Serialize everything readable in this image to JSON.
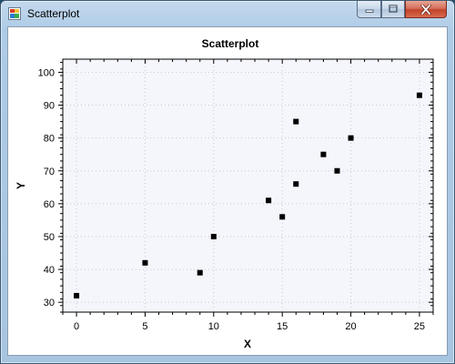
{
  "window": {
    "title": "Scatterplot",
    "controls": {
      "minimize": "minimize",
      "maximize": "maximize",
      "close": "close"
    }
  },
  "colors": {
    "plot_background": "#f5f6fc",
    "point": "#000000",
    "grid": "#c8c8d0",
    "close_button": "#c8432a"
  },
  "chart_data": {
    "type": "scatter",
    "title": "Scatterplot",
    "xlabel": "X",
    "ylabel": "Y",
    "xlim": [
      -1,
      26
    ],
    "ylim": [
      27,
      104
    ],
    "x_ticks": [
      0,
      5,
      10,
      15,
      20,
      25
    ],
    "y_ticks": [
      30,
      40,
      50,
      60,
      70,
      80,
      90,
      100
    ],
    "grid": true,
    "legend": false,
    "points": [
      {
        "x": 0,
        "y": 32
      },
      {
        "x": 5,
        "y": 42
      },
      {
        "x": 9,
        "y": 39
      },
      {
        "x": 10,
        "y": 50
      },
      {
        "x": 14,
        "y": 61
      },
      {
        "x": 15,
        "y": 56
      },
      {
        "x": 16,
        "y": 85
      },
      {
        "x": 16,
        "y": 66
      },
      {
        "x": 18,
        "y": 75
      },
      {
        "x": 19,
        "y": 70
      },
      {
        "x": 20,
        "y": 80
      },
      {
        "x": 25,
        "y": 93
      }
    ]
  }
}
